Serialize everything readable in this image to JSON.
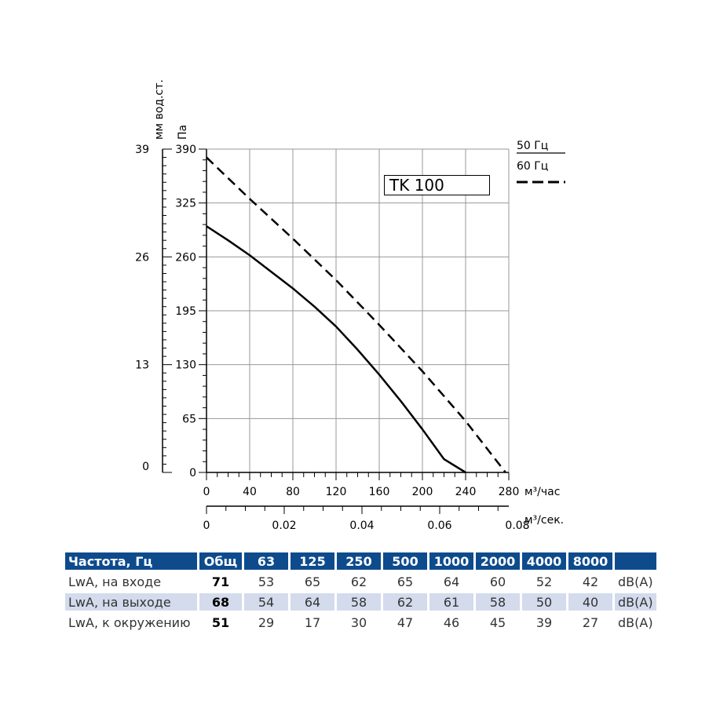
{
  "chart_data": {
    "type": "line",
    "left_axis_label": "мм вод.ст.",
    "left_axis_ticks": [
      "39",
      "26",
      "13",
      "0"
    ],
    "pa_axis_label": "Па",
    "y_ticks": [
      0,
      65,
      130,
      195,
      260,
      325,
      390
    ],
    "ylim": [
      0,
      390
    ],
    "x_ticks": [
      0,
      40,
      80,
      120,
      160,
      200,
      240,
      280
    ],
    "xlim": [
      0,
      280
    ],
    "xlabel": "м³/час",
    "x2_ticks": [
      "0",
      "0.02",
      "0.04",
      "0.06",
      "0.08"
    ],
    "x2label": "м³/сек.",
    "series": [
      {
        "name": "50 Гц",
        "style": "solid",
        "x": [
          0,
          20,
          40,
          60,
          80,
          100,
          120,
          140,
          160,
          180,
          200,
          220,
          240
        ],
        "y": [
          297,
          280,
          262,
          242,
          222,
          200,
          176,
          148,
          118,
          86,
          52,
          16,
          0
        ]
      },
      {
        "name": "60 Гц",
        "style": "dashed",
        "x": [
          0,
          40,
          80,
          120,
          160,
          200,
          240,
          277
        ],
        "y": [
          380,
          330,
          282,
          232,
          178,
          122,
          62,
          0
        ]
      }
    ],
    "legend": "top-right",
    "model": "TK 100"
  },
  "noise_table": {
    "header": [
      "Частота, Гц",
      "Общ",
      "63",
      "125",
      "250",
      "500",
      "1000",
      "2000",
      "4000",
      "8000"
    ],
    "rows": [
      {
        "label": "LwA, на входе",
        "total": "71",
        "values": [
          "53",
          "65",
          "62",
          "65",
          "64",
          "60",
          "52",
          "42"
        ],
        "unit": "dB(A)"
      },
      {
        "label": "LwA, на выходе",
        "total": "68",
        "values": [
          "54",
          "64",
          "58",
          "62",
          "61",
          "58",
          "50",
          "40"
        ],
        "unit": "dB(A)"
      },
      {
        "label": "LwA, к окружению",
        "total": "51",
        "values": [
          "29",
          "17",
          "30",
          "47",
          "46",
          "45",
          "39",
          "27"
        ],
        "unit": "dB(A)"
      }
    ]
  }
}
